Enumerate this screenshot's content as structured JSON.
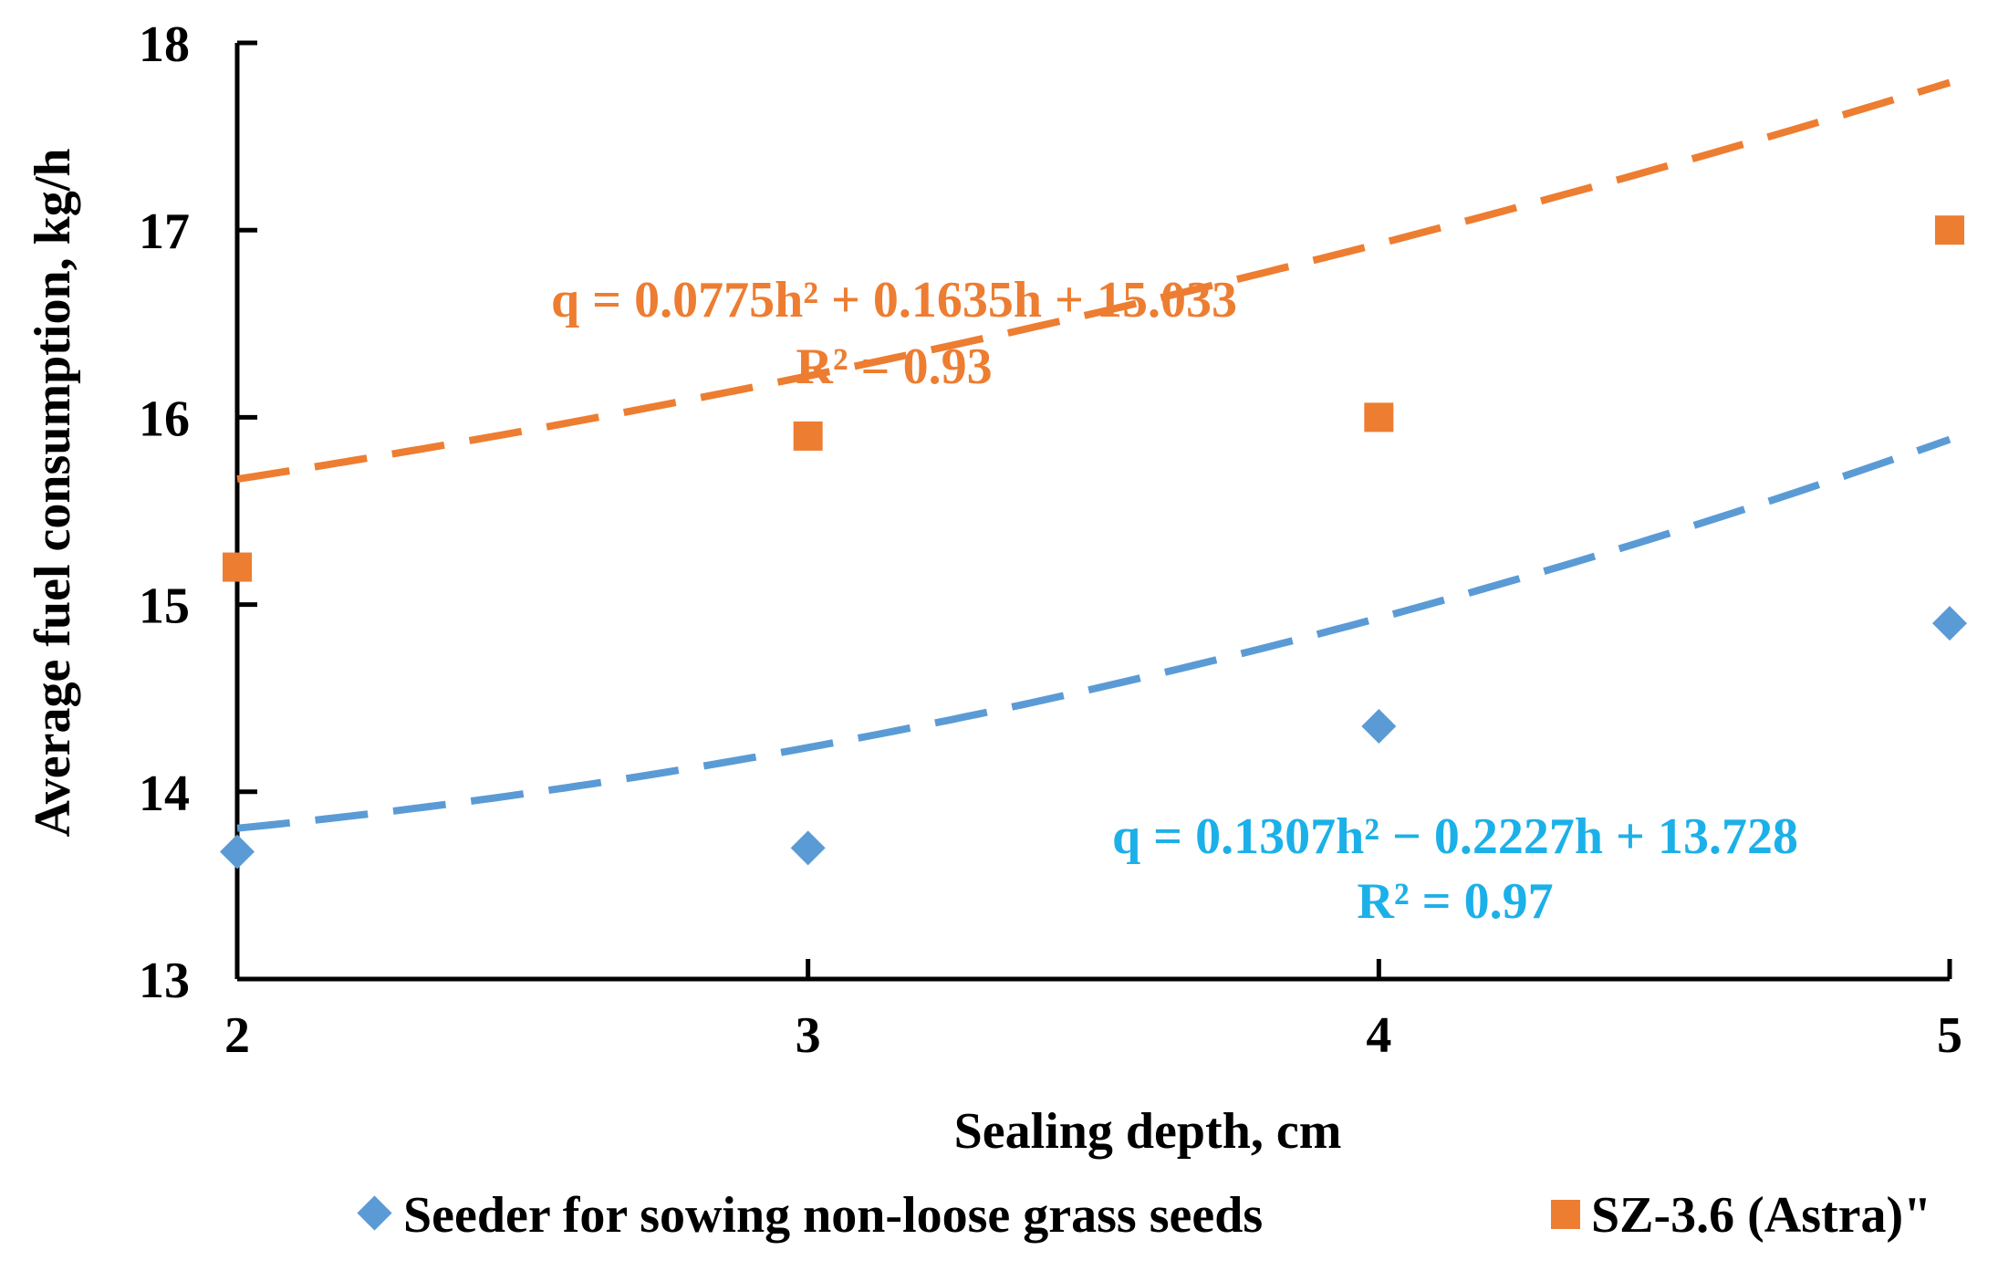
{
  "chart_data": {
    "type": "scatter",
    "title": "",
    "xlabel": "Sealing depth, cm",
    "ylabel": "Average fuel consumption, kg/h",
    "xlim": [
      2,
      5
    ],
    "ylim": [
      13,
      18
    ],
    "xticks": [
      "2",
      "3",
      "4",
      "5"
    ],
    "yticks": [
      "13",
      "14",
      "15",
      "16",
      "17",
      "18"
    ],
    "grid": false,
    "legend_position": "bottom",
    "series": [
      {
        "name": "Seeder for sowing non-loose grass seeds",
        "marker": "diamond",
        "color": "#5b9bd5",
        "x": [
          2,
          3,
          4,
          5
        ],
        "y": [
          13.68,
          13.7,
          14.35,
          14.9
        ],
        "trendline": {
          "type": "polynomial",
          "coefficients": [
            0.1307,
            -0.2227,
            13.728
          ],
          "equation": "q = 0.1307h² − 0.2227h + 13.728",
          "r2": "R² = 0.97",
          "label_color": "#1cb0e8"
        }
      },
      {
        "name": "SZ-3.6 (Astra)\"",
        "marker": "square",
        "color": "#ed7d31",
        "x": [
          2,
          3,
          4,
          5
        ],
        "y": [
          15.2,
          15.9,
          16.0,
          17.0
        ],
        "trendline": {
          "type": "polynomial",
          "coefficients": [
            0.0775,
            0.1635,
            15.033
          ],
          "equation": "q = 0.0775h² + 0.1635h + 15.033",
          "r2": "R² = 0.93",
          "label_color": "#ed7d31"
        }
      }
    ]
  }
}
